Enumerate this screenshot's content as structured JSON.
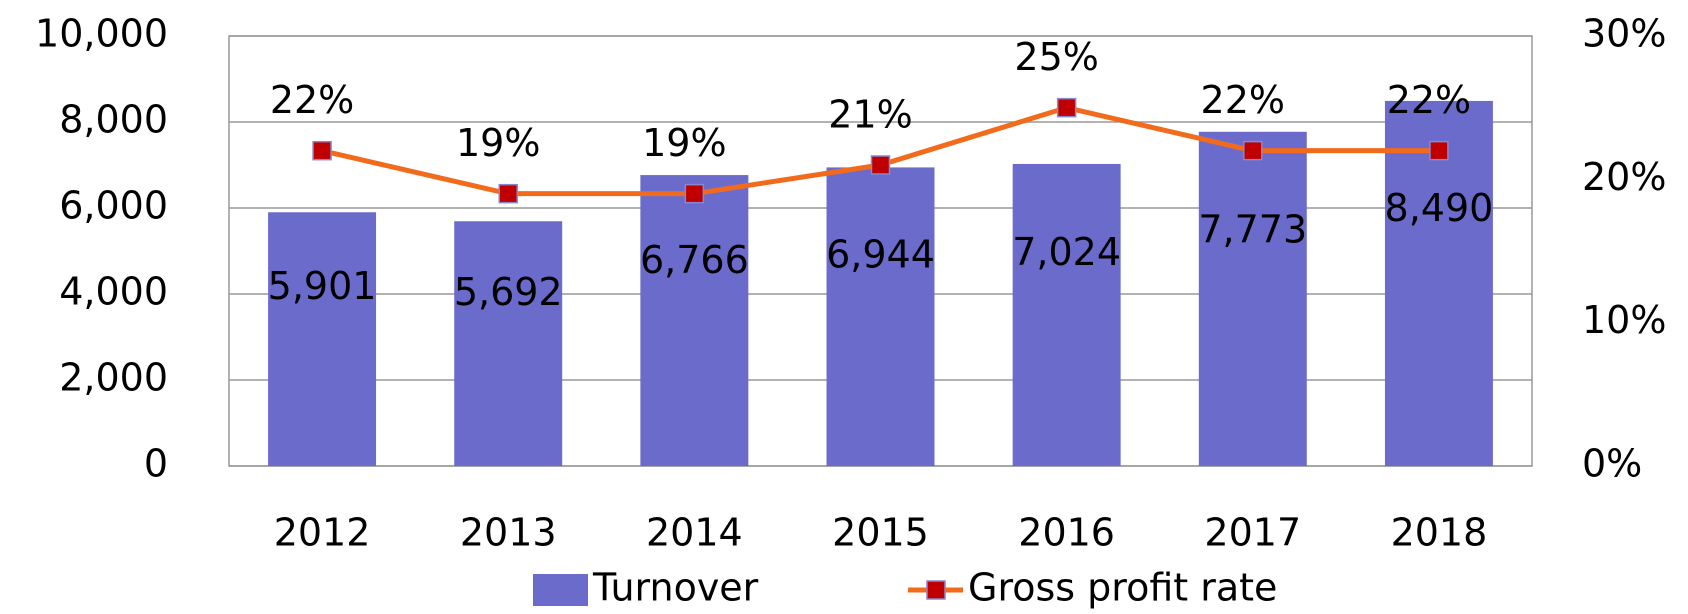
{
  "chart_data": {
    "type": "bar",
    "categories": [
      "2012",
      "2013",
      "2014",
      "2015",
      "2016",
      "2017",
      "2018"
    ],
    "series": [
      {
        "name": "Turnover",
        "type": "bar",
        "color": "#6b6bcc",
        "values": [
          5901,
          5692,
          6766,
          6944,
          7024,
          7773,
          8490
        ],
        "value_labels": [
          "5,901",
          "5,692",
          "6,766",
          "6,944",
          "7,024",
          "7,773",
          "8,490"
        ]
      },
      {
        "name": "Gross profit rate",
        "type": "line",
        "axis": "y2",
        "color": "#f26b1d",
        "marker_color": "#c00000",
        "values": [
          22,
          19,
          19,
          21,
          25,
          22,
          22
        ],
        "value_labels": [
          "22%",
          "19%",
          "19%",
          "21%",
          "25%",
          "22%",
          "22%"
        ]
      }
    ],
    "ylim": [
      0,
      10000
    ],
    "yticks": [
      0,
      {
        "value": 2000,
        "label": "2,000"
      },
      {
        "value": 4000,
        "label": "4,000"
      },
      {
        "value": 6000,
        "label": "6,000"
      },
      {
        "value": 8000,
        "label": "8,000"
      },
      {
        "value": 10000,
        "label": "10,000"
      }
    ],
    "y2lim": [
      0,
      30
    ],
    "y2ticks": [
      {
        "value": 0,
        "label": "0%"
      },
      {
        "value": 10,
        "label": "10%"
      },
      {
        "value": 20,
        "label": "20%"
      },
      {
        "value": 30,
        "label": "30%"
      }
    ],
    "grid": true,
    "legend": "bottom"
  }
}
